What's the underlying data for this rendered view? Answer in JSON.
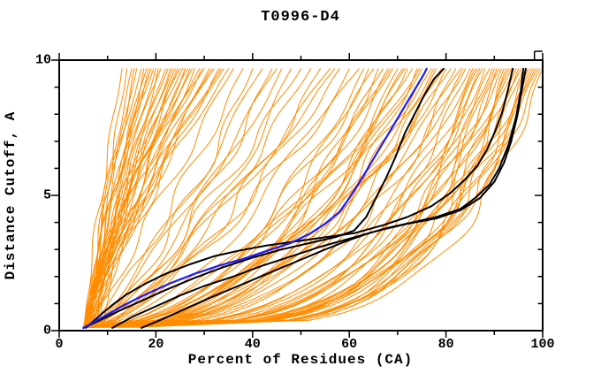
{
  "chart_data": {
    "type": "line",
    "title": "T0996-D4",
    "xlabel": "Percent of Residues (CA)",
    "ylabel": "Distance Cutoff, A",
    "xlim": [
      0,
      100
    ],
    "ylim": [
      0,
      10
    ],
    "x_tick_labels": [
      0,
      20,
      40,
      60,
      80,
      100
    ],
    "x_minor_step": 10,
    "y_tick_labels": [
      0,
      5,
      10
    ],
    "y_minor_step": 1,
    "grid": false,
    "legend": false,
    "colors": {
      "model_curves": "#ff8c00",
      "highlight_curve": "#1a1aff",
      "selected_curves": "#000000",
      "frame": "#000000",
      "background": "#ffffff"
    },
    "series": {
      "blue_curve": {
        "name": "highlighted model",
        "points": [
          [
            5,
            0.1
          ],
          [
            7,
            0.3
          ],
          [
            10,
            0.6
          ],
          [
            14,
            1.0
          ],
          [
            18,
            1.35
          ],
          [
            23,
            1.75
          ],
          [
            28,
            2.1
          ],
          [
            33,
            2.4
          ],
          [
            38,
            2.65
          ],
          [
            43,
            2.95
          ],
          [
            48,
            3.25
          ],
          [
            52,
            3.6
          ],
          [
            55,
            3.95
          ],
          [
            58,
            4.4
          ],
          [
            60,
            4.9
          ],
          [
            62,
            5.45
          ],
          [
            64,
            6.05
          ],
          [
            66,
            6.65
          ],
          [
            68,
            7.25
          ],
          [
            70,
            7.85
          ],
          [
            72,
            8.45
          ],
          [
            74,
            9.05
          ],
          [
            75.5,
            9.5
          ],
          [
            76,
            9.68
          ]
        ]
      },
      "black_curves": [
        {
          "name": "selected model 1",
          "points": [
            [
              5,
              0.1
            ],
            [
              8,
              0.35
            ],
            [
              12,
              0.7
            ],
            [
              17,
              1.1
            ],
            [
              22,
              1.5
            ],
            [
              28,
              1.95
            ],
            [
              34,
              2.35
            ],
            [
              40,
              2.7
            ],
            [
              46,
              3.0
            ],
            [
              52,
              3.25
            ],
            [
              57,
              3.45
            ],
            [
              61,
              3.7
            ],
            [
              63.5,
              4.2
            ],
            [
              65.5,
              4.9
            ],
            [
              67.5,
              5.6
            ],
            [
              69.5,
              6.4
            ],
            [
              71.5,
              7.3
            ],
            [
              73.5,
              8.0
            ],
            [
              75.5,
              8.7
            ],
            [
              77.5,
              9.3
            ],
            [
              79.5,
              9.68
            ]
          ]
        },
        {
          "name": "selected model 2",
          "points": [
            [
              5.5,
              0.1
            ],
            [
              8,
              0.5
            ],
            [
              11,
              0.95
            ],
            [
              14,
              1.35
            ],
            [
              18,
              1.75
            ],
            [
              22,
              2.1
            ],
            [
              27,
              2.45
            ],
            [
              32,
              2.75
            ],
            [
              37,
              2.95
            ],
            [
              43,
              3.15
            ],
            [
              49,
              3.3
            ],
            [
              55,
              3.45
            ],
            [
              61,
              3.6
            ],
            [
              67,
              3.9
            ],
            [
              72,
              4.2
            ],
            [
              77,
              4.6
            ],
            [
              81,
              5.1
            ],
            [
              84,
              5.6
            ],
            [
              86.5,
              6.1
            ],
            [
              88.5,
              6.7
            ],
            [
              90,
              7.3
            ],
            [
              91.5,
              8.0
            ],
            [
              92.7,
              8.8
            ],
            [
              93.8,
              9.68
            ]
          ]
        },
        {
          "name": "selected model 3",
          "points": [
            [
              11,
              0.1
            ],
            [
              15,
              0.5
            ],
            [
              20,
              0.9
            ],
            [
              25,
              1.3
            ],
            [
              30,
              1.65
            ],
            [
              36,
              2.0
            ],
            [
              42,
              2.4
            ],
            [
              48,
              2.75
            ],
            [
              54,
              3.1
            ],
            [
              60,
              3.4
            ],
            [
              66,
              3.7
            ],
            [
              72,
              3.95
            ],
            [
              78,
              4.15
            ],
            [
              83,
              4.45
            ],
            [
              87,
              4.9
            ],
            [
              90,
              5.5
            ],
            [
              92,
              6.2
            ],
            [
              93.5,
              7.0
            ],
            [
              94.7,
              7.9
            ],
            [
              95.6,
              8.8
            ],
            [
              96.5,
              9.68
            ]
          ]
        },
        {
          "name": "selected model 4",
          "points": [
            [
              17,
              0.1
            ],
            [
              21,
              0.4
            ],
            [
              26,
              0.8
            ],
            [
              31,
              1.2
            ],
            [
              37,
              1.65
            ],
            [
              43,
              2.1
            ],
            [
              49,
              2.55
            ],
            [
              55,
              3.0
            ],
            [
              60,
              3.35
            ],
            [
              64,
              3.6
            ],
            [
              68,
              3.8
            ],
            [
              73,
              4.0
            ],
            [
              78,
              4.2
            ],
            [
              83,
              4.5
            ],
            [
              86,
              4.9
            ],
            [
              89,
              5.4
            ],
            [
              91,
              6.0
            ],
            [
              93,
              6.9
            ],
            [
              94.5,
              7.9
            ],
            [
              95.5,
              8.9
            ],
            [
              96,
              9.68
            ]
          ]
        }
      ],
      "orange_model_curves": {
        "note": "each curve estimated as [x_percent_at_cutoff0, x_percent_at_cutoff_max, shape_exponent]; y spans 0.12 to 9.68 A",
        "y_range": [
          0.12,
          9.68
        ],
        "curves": [
          [
            5.2,
            13,
            1.2
          ],
          [
            5.5,
            14,
            1.05
          ],
          [
            5.8,
            15,
            1.3
          ],
          [
            5.0,
            15.5,
            0.95
          ],
          [
            6.0,
            16,
            1.15
          ],
          [
            5.4,
            17,
            1.4
          ],
          [
            6.2,
            17.5,
            1.0
          ],
          [
            5.7,
            18,
            1.25
          ],
          [
            5.1,
            18.5,
            1.1
          ],
          [
            6.4,
            19,
            1.5
          ],
          [
            5.9,
            20,
            1.2
          ],
          [
            5.3,
            20.5,
            0.9
          ],
          [
            6.1,
            21,
            1.35
          ],
          [
            5.6,
            22,
            1.1
          ],
          [
            6.5,
            22.5,
            1.45
          ],
          [
            5.2,
            23,
            1.0
          ],
          [
            5.8,
            24,
            1.25
          ],
          [
            6.3,
            24.5,
            1.15
          ],
          [
            5.5,
            25,
            1.4
          ],
          [
            6.0,
            26,
            1.05
          ],
          [
            5.4,
            26.5,
            1.3
          ],
          [
            6.6,
            27,
            1.2
          ],
          [
            5.7,
            28,
            1.0
          ],
          [
            6.2,
            29,
            1.35
          ],
          [
            5.3,
            29.5,
            1.15
          ],
          [
            5.9,
            30,
            1.45
          ],
          [
            6.4,
            31,
            1.05
          ],
          [
            5.6,
            32,
            1.25
          ],
          [
            6.1,
            33,
            1.1
          ],
          [
            5.8,
            34,
            1.35
          ],
          [
            5.2,
            35,
            1.2
          ],
          [
            6.3,
            36,
            1.0
          ],
          [
            7.0,
            19.5,
            1.6
          ],
          [
            7.4,
            23.5,
            1.5
          ],
          [
            8.0,
            27.5,
            1.55
          ],
          [
            7.7,
            31.5,
            1.4
          ],
          [
            8.5,
            25.5,
            1.65
          ],
          [
            9.0,
            33.5,
            1.5
          ],
          [
            5.5,
            38,
            0.8
          ],
          [
            6.0,
            40,
            0.7
          ],
          [
            6.5,
            42,
            0.85
          ],
          [
            5.8,
            44,
            0.65
          ],
          [
            6.2,
            46,
            0.75
          ],
          [
            5.4,
            48,
            0.6
          ],
          [
            6.8,
            50,
            0.8
          ],
          [
            5.9,
            52,
            0.7
          ],
          [
            6.4,
            54,
            0.62
          ],
          [
            5.6,
            56,
            0.75
          ],
          [
            7.0,
            58,
            0.68
          ],
          [
            6.1,
            60,
            0.58
          ],
          [
            6.6,
            62,
            0.72
          ],
          [
            8.0,
            45,
            0.9
          ],
          [
            9.5,
            57,
            0.85
          ],
          [
            5.5,
            63,
            0.5
          ],
          [
            6.0,
            64,
            0.45
          ],
          [
            6.5,
            65,
            0.55
          ],
          [
            5.8,
            66,
            0.4
          ],
          [
            6.2,
            67,
            0.5
          ],
          [
            5.4,
            68,
            0.44
          ],
          [
            6.8,
            69,
            0.52
          ],
          [
            5.9,
            70,
            0.38
          ],
          [
            6.4,
            71,
            0.48
          ],
          [
            5.6,
            72,
            0.42
          ],
          [
            7.0,
            73,
            0.5
          ],
          [
            6.1,
            74,
            0.36
          ],
          [
            6.6,
            75,
            0.46
          ],
          [
            5.7,
            76,
            0.4
          ],
          [
            6.3,
            77,
            0.5
          ],
          [
            5.5,
            78,
            0.35
          ],
          [
            6.9,
            79,
            0.44
          ],
          [
            6.0,
            80,
            0.38
          ],
          [
            6.5,
            81,
            0.46
          ],
          [
            5.8,
            82,
            0.33
          ],
          [
            6.2,
            83,
            0.42
          ],
          [
            5.9,
            84,
            0.37
          ],
          [
            8.5,
            68.5,
            0.55
          ],
          [
            9.0,
            74.5,
            0.5
          ],
          [
            10.0,
            79.5,
            0.45
          ],
          [
            11.0,
            83.5,
            0.4
          ],
          [
            12.0,
            71.5,
            0.52
          ],
          [
            13.0,
            77.5,
            0.48
          ],
          [
            5.5,
            85,
            0.3
          ],
          [
            6.0,
            86,
            0.26
          ],
          [
            6.5,
            87,
            0.32
          ],
          [
            5.8,
            88,
            0.24
          ],
          [
            6.2,
            89,
            0.3
          ],
          [
            5.4,
            90,
            0.22
          ],
          [
            6.8,
            91,
            0.28
          ],
          [
            5.9,
            92,
            0.2
          ],
          [
            6.4,
            93,
            0.26
          ],
          [
            5.6,
            94,
            0.23
          ],
          [
            7.0,
            95,
            0.28
          ],
          [
            6.1,
            96,
            0.21
          ],
          [
            6.6,
            97,
            0.25
          ],
          [
            5.7,
            98,
            0.22
          ],
          [
            6.3,
            99,
            0.27
          ],
          [
            5.5,
            100,
            0.2
          ],
          [
            7.5,
            85.5,
            0.33
          ],
          [
            8.0,
            87.5,
            0.29
          ],
          [
            8.5,
            89.5,
            0.25
          ],
          [
            9.0,
            91.5,
            0.3
          ],
          [
            9.5,
            93.5,
            0.24
          ],
          [
            10.0,
            95.5,
            0.27
          ],
          [
            10.5,
            97.5,
            0.22
          ],
          [
            11.0,
            99.5,
            0.25
          ],
          [
            12.0,
            86.5,
            0.31
          ],
          [
            12.5,
            90.5,
            0.26
          ],
          [
            13.0,
            94.5,
            0.23
          ],
          [
            14.0,
            98.5,
            0.26
          ],
          [
            15.0,
            92.5,
            0.28
          ],
          [
            16.0,
            96.5,
            0.24
          ]
        ]
      }
    }
  }
}
